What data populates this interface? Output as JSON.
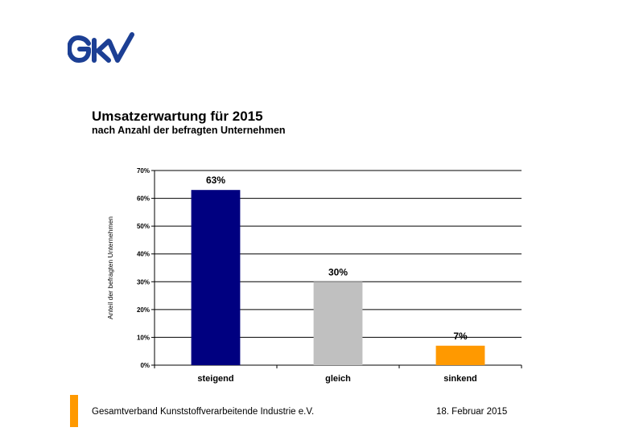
{
  "logo": {
    "text": "GKV",
    "color": "#1c3f94"
  },
  "chart_data": {
    "type": "bar",
    "title": "Umsatzerwartung für 2015",
    "subtitle": "nach Anzahl der befragten Unternehmen",
    "ylabel": "Anteil der befragten Unternehmen",
    "xlabel": "",
    "categories": [
      "steigend",
      "gleich",
      "sinkend"
    ],
    "values": [
      63,
      30,
      7
    ],
    "data_labels": [
      "63%",
      "30%",
      "7%"
    ],
    "colors": [
      "#000080",
      "#c0c0c0",
      "#ff9900"
    ],
    "ylim": [
      0,
      70
    ],
    "yticks": [
      "0%",
      "10%",
      "20%",
      "30%",
      "40%",
      "50%",
      "60%",
      "70%"
    ],
    "grid": true,
    "legend": "none"
  },
  "footer": {
    "organization": "Gesamtverband Kunststoffverarbeitende Industrie e.V.",
    "date": "18. Februar 2015",
    "accent_color": "#ff9900"
  }
}
